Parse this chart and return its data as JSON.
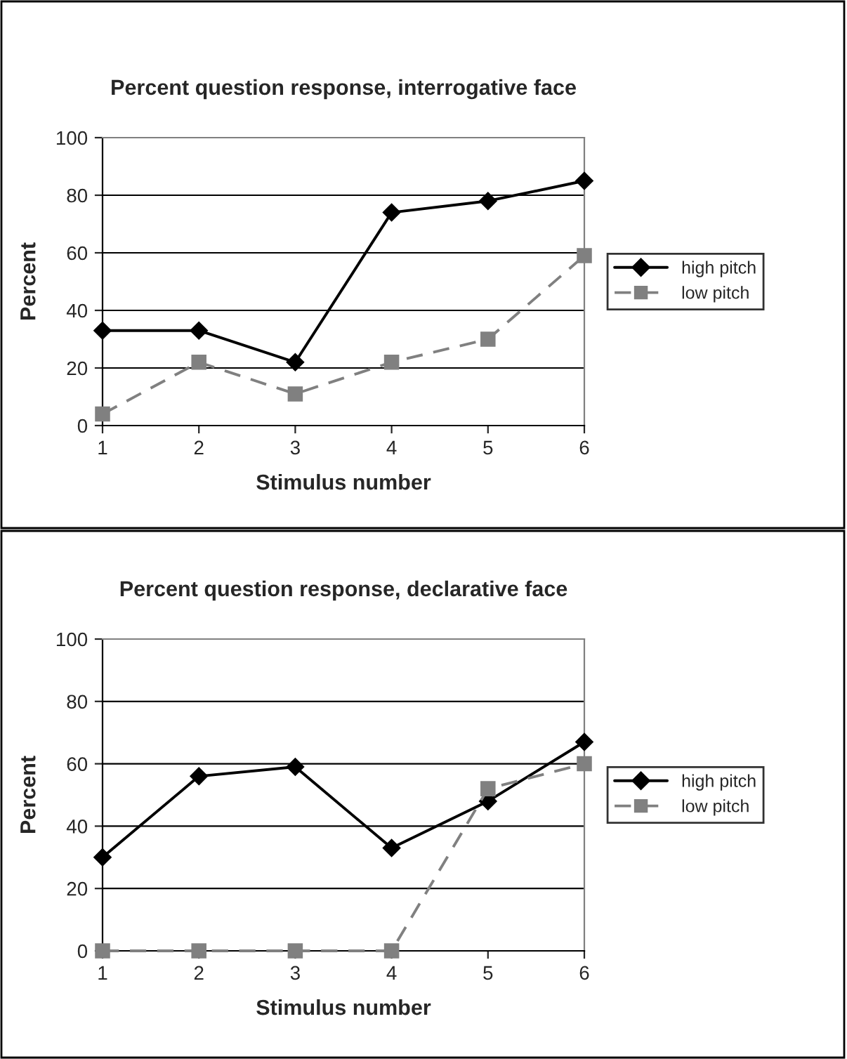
{
  "chart_data": [
    {
      "type": "line",
      "title": "Percent question response, interrogative face",
      "xlabel": "Stimulus number",
      "ylabel": "Percent",
      "x": [
        1,
        2,
        3,
        4,
        5,
        6
      ],
      "xlim": [
        1,
        6
      ],
      "xticks": [
        1,
        2,
        3,
        4,
        5,
        6
      ],
      "ylim": [
        0,
        100
      ],
      "yticks": [
        0,
        20,
        40,
        60,
        80,
        100
      ],
      "grid": "y",
      "legend": "right",
      "series": [
        {
          "name": "high pitch",
          "color": "#000000",
          "marker": "diamond",
          "line_style": "solid",
          "values": [
            33,
            33,
            22,
            74,
            78,
            85
          ]
        },
        {
          "name": "low pitch",
          "color": "#808080",
          "marker": "square",
          "line_style": "dashed",
          "values": [
            4,
            22,
            11,
            22,
            30,
            59
          ]
        }
      ]
    },
    {
      "type": "line",
      "title": "Percent question response, declarative face",
      "xlabel": "Stimulus number",
      "ylabel": "Percent",
      "x": [
        1,
        2,
        3,
        4,
        5,
        6
      ],
      "xlim": [
        1,
        6
      ],
      "xticks": [
        1,
        2,
        3,
        4,
        5,
        6
      ],
      "ylim": [
        0,
        100
      ],
      "yticks": [
        0,
        20,
        40,
        60,
        80,
        100
      ],
      "grid": "y",
      "legend": "right",
      "series": [
        {
          "name": "high pitch",
          "color": "#000000",
          "marker": "diamond",
          "line_style": "solid",
          "values": [
            30,
            56,
            59,
            33,
            48,
            67
          ]
        },
        {
          "name": "low pitch",
          "color": "#808080",
          "marker": "square",
          "line_style": "dashed",
          "values": [
            0,
            0,
            0,
            0,
            52,
            60
          ]
        }
      ]
    }
  ]
}
